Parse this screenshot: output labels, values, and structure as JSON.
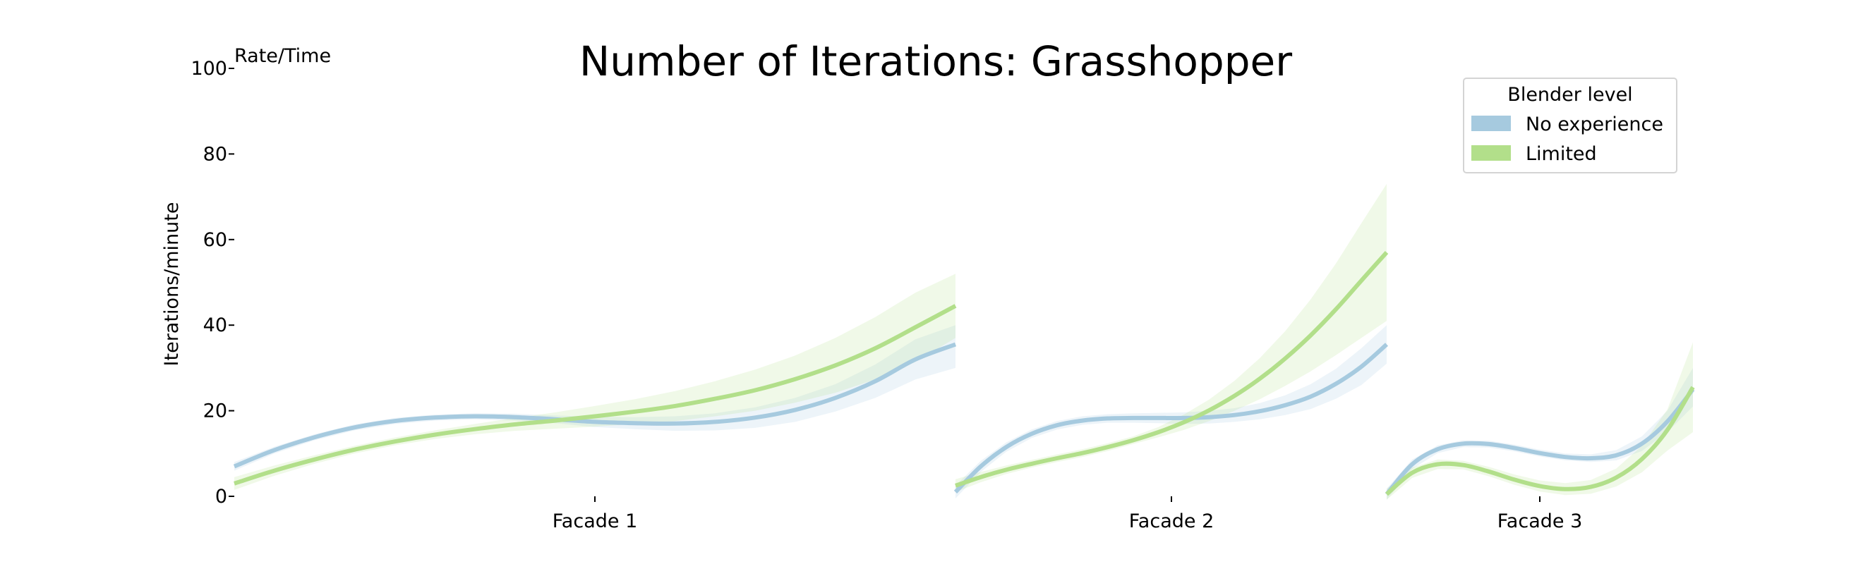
{
  "chart_data": {
    "type": "line",
    "title": "Number of Iterations: Grasshopper",
    "corner_label": "Rate/Time",
    "ylabel": "Iterations/minute",
    "ylim": [
      0,
      100
    ],
    "yticks": [
      0,
      20,
      40,
      60,
      80,
      100
    ],
    "grid": false,
    "legend": {
      "title": "Blender level",
      "placement": "top-right",
      "entries": [
        "No experience",
        "Limited"
      ]
    },
    "panels": [
      {
        "label": "Facade 1",
        "series": [
          {
            "name": "No experience",
            "color": "#a6cadf",
            "values": [
              7,
              10.8,
              13.8,
              16.1,
              17.6,
              18.4,
              18.7,
              18.5,
              18,
              17.4,
              17.1,
              17,
              17.4,
              18.4,
              20.2,
              23,
              26.9,
              32,
              35.5
            ],
            "ci_upper": [
              8,
              11.6,
              14.5,
              16.8,
              18.3,
              19.1,
              19.4,
              19.3,
              18.9,
              18.6,
              18.5,
              18.7,
              19.4,
              20.8,
              23,
              26.2,
              30.8,
              36.7,
              40
            ],
            "ci_lower": [
              6,
              10,
              13.1,
              15.4,
              16.9,
              17.7,
              18,
              17.7,
              17.1,
              16.2,
              15.7,
              15.3,
              15.4,
              16,
              17.4,
              19.8,
              23,
              27.3,
              30
            ]
          },
          {
            "name": "Limited",
            "color": "#b2df8a",
            "values": [
              3,
              6,
              8.6,
              10.9,
              12.8,
              14.4,
              15.7,
              16.8,
              17.7,
              18.7,
              19.8,
              21.1,
              22.8,
              24.8,
              27.4,
              30.6,
              34.6,
              39.5,
              44.5
            ],
            "ci_upper": [
              4.5,
              7.2,
              9.6,
              11.8,
              13.7,
              15.4,
              16.9,
              18.3,
              19.6,
              21.1,
              22.7,
              24.6,
              26.9,
              29.6,
              32.9,
              37,
              41.9,
              47.6,
              52
            ],
            "ci_lower": [
              1.5,
              4.8,
              7.6,
              10,
              11.9,
              13.4,
              14.5,
              15.3,
              15.8,
              16.3,
              16.9,
              17.6,
              18.7,
              20,
              21.9,
              24.2,
              27.3,
              31.4,
              37
            ]
          }
        ]
      },
      {
        "label": "Facade 2",
        "series": [
          {
            "name": "No experience",
            "color": "#a6cadf",
            "values": [
              1,
              7,
              11.5,
              14.6,
              16.6,
              17.7,
              18.2,
              18.3,
              18.3,
              18.3,
              18.5,
              19,
              19.9,
              21.3,
              23.3,
              26.3,
              30.3,
              35.5
            ],
            "ci_upper": [
              2.5,
              8.3,
              12.6,
              15.6,
              17.6,
              18.7,
              19.2,
              19.4,
              19.5,
              19.6,
              20,
              20.6,
              21.8,
              23.6,
              26.2,
              29.8,
              34.6,
              40
            ],
            "ci_lower": [
              -0.5,
              5.7,
              10.4,
              13.6,
              15.6,
              16.7,
              17.2,
              17.2,
              17.1,
              16.9,
              17,
              17.4,
              18,
              19,
              20.4,
              22.8,
              26,
              31
            ]
          },
          {
            "name": "Limited",
            "color": "#b2df8a",
            "values": [
              2.5,
              4.5,
              6.2,
              7.6,
              8.9,
              10.1,
              11.5,
              13.1,
              15,
              17.3,
              20.1,
              23.5,
              27.5,
              32.2,
              37.6,
              43.7,
              50.4,
              57
            ],
            "ci_upper": [
              4,
              5.7,
              7.2,
              8.5,
              9.8,
              11,
              12.4,
              14,
              16.2,
              19.1,
              22.6,
              27,
              32.3,
              38.6,
              46,
              54.4,
              63.8,
              73
            ],
            "ci_lower": [
              1,
              3.3,
              5.2,
              6.7,
              8,
              9.2,
              10.6,
              12.2,
              13.8,
              15.5,
              17.6,
              20,
              22.7,
              25.8,
              29.2,
              33,
              37,
              41
            ]
          }
        ]
      },
      {
        "label": "Facade 3",
        "series": [
          {
            "name": "No experience",
            "color": "#a6cadf",
            "values": [
              0.5,
              7.5,
              11,
              12.3,
              12.2,
              11.3,
              10.1,
              9.2,
              8.9,
              9.6,
              12.3,
              17.5,
              25
            ],
            "ci_upper": [
              1.8,
              8.6,
              11.9,
              13.1,
              13,
              12.1,
              10.9,
              10,
              9.8,
              10.8,
              14,
              20,
              30
            ],
            "ci_lower": [
              -0.8,
              6.4,
              10.1,
              11.5,
              11.4,
              10.5,
              9.3,
              8.4,
              8,
              8.4,
              10.6,
              15,
              21
            ]
          },
          {
            "name": "Limited",
            "color": "#b2df8a",
            "values": [
              0.5,
              5.5,
              7.5,
              7.3,
              5.8,
              3.9,
              2.4,
              1.7,
              2.2,
              4.4,
              8.7,
              15.5,
              25.5
            ],
            "ci_upper": [
              1.8,
              6.7,
              8.6,
              8.3,
              6.9,
              5.1,
              3.7,
              3.1,
              3.8,
              6.5,
              11.8,
              20.3,
              36
            ],
            "ci_lower": [
              -0.8,
              4.3,
              6.4,
              6.3,
              4.7,
              2.7,
              1.1,
              0.3,
              0.6,
              2.3,
              5.6,
              10.7,
              15
            ]
          }
        ]
      }
    ]
  }
}
